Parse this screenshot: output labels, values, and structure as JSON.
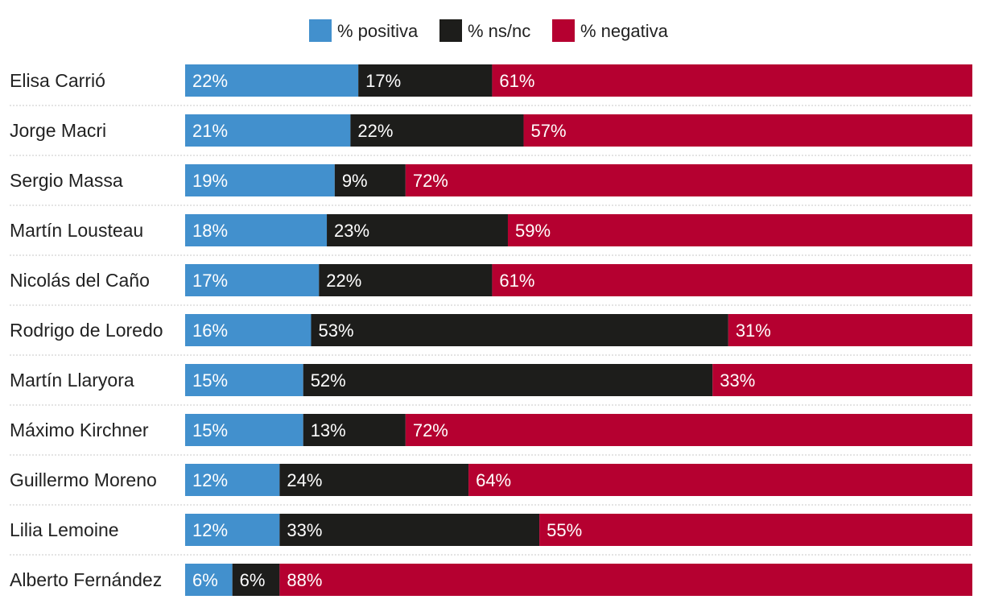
{
  "chart_data": {
    "type": "bar",
    "orientation": "horizontal",
    "stacked": true,
    "normalized": true,
    "title": "",
    "xlabel": "",
    "ylabel": "",
    "xlim": [
      0,
      100
    ],
    "legend_position": "top-center",
    "categories": [
      "Elisa Carrió",
      "Jorge Macri",
      "Sergio Massa",
      "Martín Lousteau",
      "Nicolás del Caño",
      "Rodrigo de Loredo",
      "Martín Llaryora",
      "Máximo Kirchner",
      "Guillermo Moreno",
      "Lilia Lemoine",
      "Alberto Fernández"
    ],
    "series": [
      {
        "name": "% positiva",
        "color": "#4290cd",
        "values": [
          22,
          21,
          19,
          18,
          17,
          16,
          15,
          15,
          12,
          12,
          6
        ]
      },
      {
        "name": "% ns/nc",
        "color": "#1d1d1b",
        "values": [
          17,
          22,
          9,
          23,
          22,
          53,
          52,
          13,
          24,
          33,
          6
        ]
      },
      {
        "name": "% negativa",
        "color": "#b50030",
        "values": [
          61,
          57,
          72,
          59,
          61,
          31,
          33,
          72,
          64,
          55,
          88
        ]
      }
    ],
    "value_suffix": "%"
  }
}
